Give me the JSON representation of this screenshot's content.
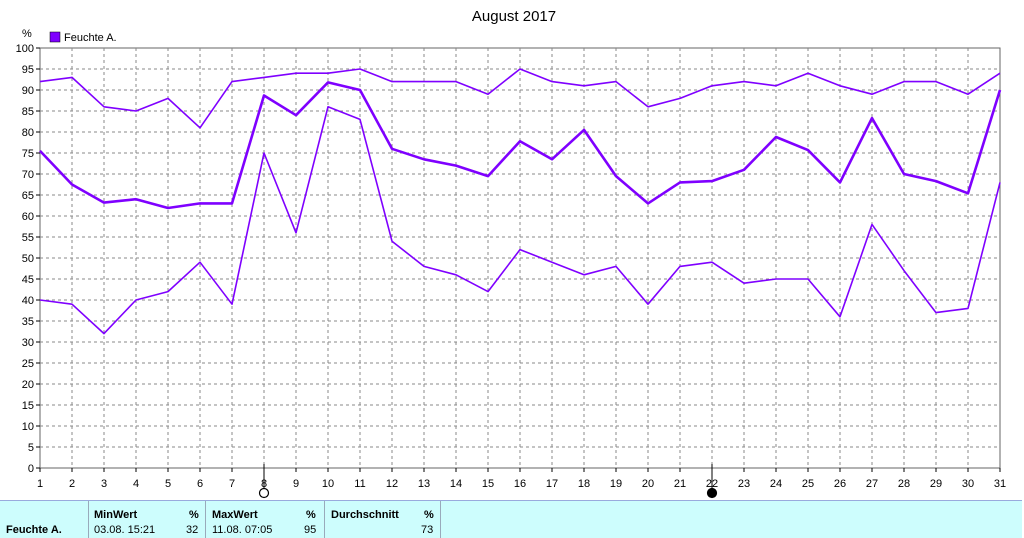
{
  "chart_data": {
    "type": "line",
    "title": "August 2017",
    "ylabel": "%",
    "ylim": [
      0,
      100
    ],
    "ytick_step": 5,
    "grid": true,
    "legend": {
      "placement": "top-left",
      "entries": [
        "Feuchte A."
      ]
    },
    "x": [
      1,
      2,
      3,
      4,
      5,
      6,
      7,
      8,
      9,
      10,
      11,
      12,
      13,
      14,
      15,
      16,
      17,
      18,
      19,
      20,
      21,
      22,
      23,
      24,
      25,
      26,
      27,
      28,
      29,
      30,
      31
    ],
    "series": [
      {
        "name": "Feuchte A.",
        "role": "max",
        "values": [
          92,
          93,
          86,
          85,
          88,
          81,
          92,
          93,
          94,
          94,
          95,
          92,
          92,
          92,
          89,
          95,
          92,
          91,
          92,
          86,
          88,
          91,
          92,
          91,
          94,
          91,
          89,
          92,
          92,
          89,
          94
        ]
      },
      {
        "name": "Feuchte A.",
        "role": "mean",
        "values": [
          75.5,
          67.5,
          63.2,
          64,
          61.9,
          63,
          63,
          88.7,
          84,
          91.8,
          90,
          76,
          73.5,
          72,
          69.5,
          77.8,
          73.5,
          80.5,
          69.5,
          63,
          68,
          68.3,
          71,
          78.8,
          75.7,
          68,
          83.3,
          70,
          68.3,
          65.4,
          90
        ]
      },
      {
        "name": "Feuchte A.",
        "role": "min",
        "values": [
          40,
          39,
          32,
          40,
          42,
          49,
          39,
          75,
          56,
          86,
          83,
          54,
          48,
          46,
          42,
          52,
          49,
          46,
          48,
          39,
          48,
          49,
          44,
          45,
          45,
          36,
          58,
          47,
          37,
          38,
          68
        ]
      }
    ],
    "colors": {
      "line": "#7f00ff",
      "grid": "#888888",
      "footer_bg": "#cdfdfd"
    },
    "markers": [
      {
        "day": 8,
        "shape": "open-circle"
      },
      {
        "day": 22,
        "shape": "filled-circle"
      }
    ]
  },
  "footer": {
    "series_label": "Feuchte A.",
    "min": {
      "header": "MinWert",
      "unit": "%",
      "time": "03.08.  15:21",
      "value": "32"
    },
    "max": {
      "header": "MaxWert",
      "unit": "%",
      "time": "11.08.  07:05",
      "value": "95"
    },
    "avg": {
      "header": "Durchschnitt",
      "unit": "%",
      "value": "73"
    }
  }
}
